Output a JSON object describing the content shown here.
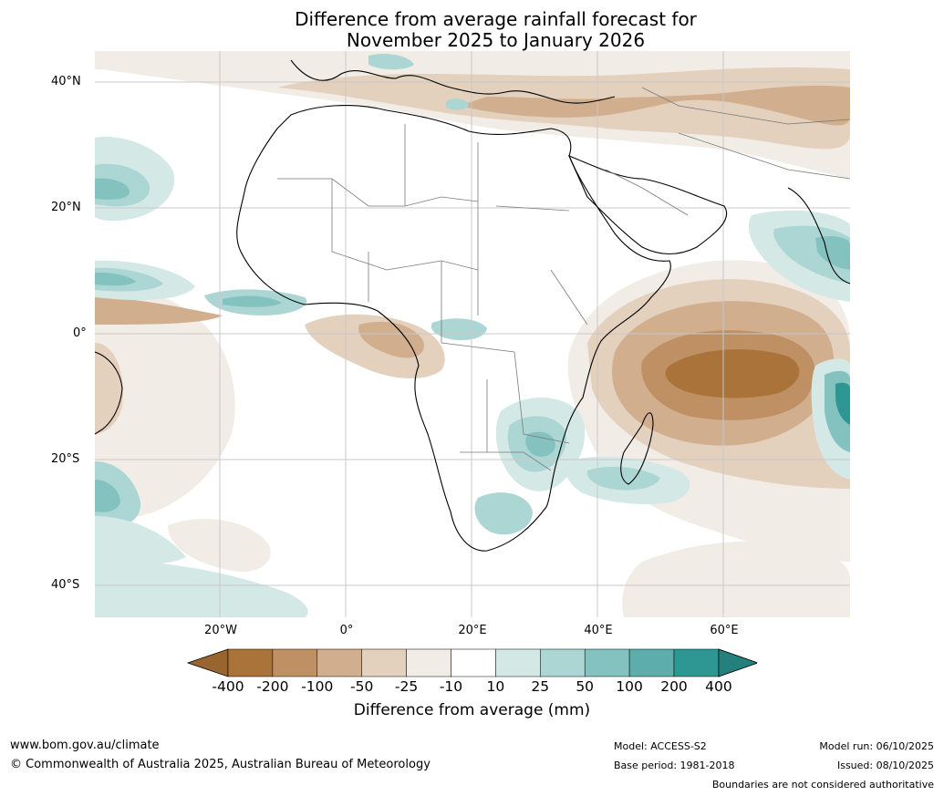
{
  "title": {
    "line1": "Difference from average rainfall forecast for",
    "line2": "November 2025 to January 2026"
  },
  "latitude_labels": [
    "40°N",
    "20°N",
    "0°",
    "20°S",
    "40°S"
  ],
  "longitude_labels": [
    "20°W",
    "0°",
    "20°E",
    "40°E",
    "60°E"
  ],
  "colorbar": {
    "ticks": [
      "-400",
      "-200",
      "-100",
      "-50",
      "-25",
      "-10",
      "10",
      "25",
      "50",
      "100",
      "200",
      "400"
    ],
    "colors": [
      "#a97339",
      "#bf9064",
      "#d1ae8d",
      "#e3d0bd",
      "#f2ece6",
      "#ffffff",
      "#d4e8e6",
      "#acd6d3",
      "#84c2c0",
      "#5cadab",
      "#2f9793"
    ],
    "low_extend_color": "#98652f",
    "high_extend_color": "#24807d",
    "title": "Difference from average (mm)"
  },
  "footer": {
    "website": "www.bom.gov.au/climate",
    "copyright": "© Commonwealth of Australia 2025, Australian Bureau of Meteorology",
    "model": "Model: ACCESS-S2",
    "base_period": "Base period: 1981-2018",
    "model_run": "Model run: 06/10/2025",
    "issued": "Issued: 08/10/2025",
    "disclaimer": "Boundaries are not considered authoritative"
  }
}
